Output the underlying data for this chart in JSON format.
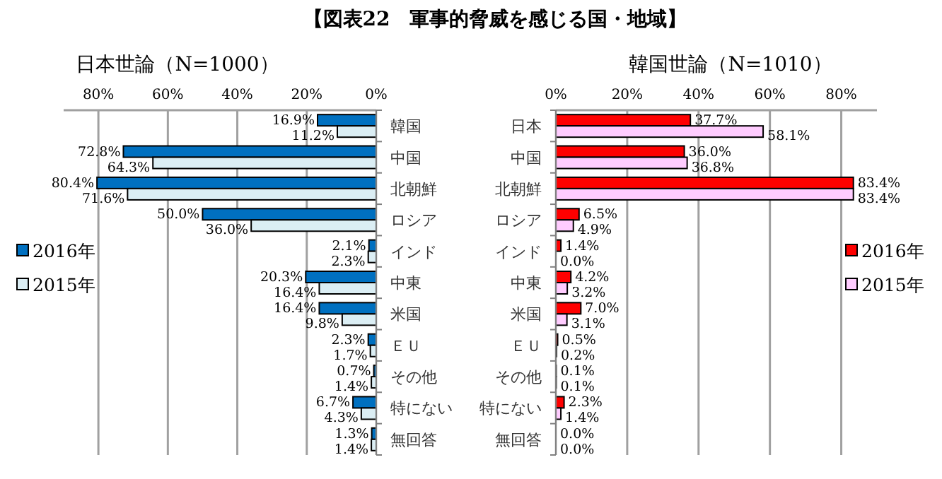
{
  "chart_data": [
    {
      "type": "bar",
      "orientation": "horizontal",
      "title": "【図表22　軍事的脅威を感じる国・地域】",
      "subtitle": "日本世論（N=1000）",
      "categories": [
        "韓国",
        "中国",
        "北朝鮮",
        "ロシア",
        "インド",
        "中東",
        "米国",
        "ＥＵ",
        "その他",
        "特にない",
        "無回答"
      ],
      "series": [
        {
          "name": "2016年",
          "color": "#0070c0",
          "values": [
            16.9,
            72.8,
            80.4,
            50.0,
            2.1,
            20.3,
            16.4,
            2.3,
            0.7,
            6.7,
            1.3
          ],
          "value_labels": [
            "16.9%",
            "72.8%",
            "80.4%",
            "50.0%",
            "2.1%",
            "20.3%",
            "16.4%",
            "2.3%",
            "0.7%",
            "6.7%",
            "1.3%"
          ]
        },
        {
          "name": "2015年",
          "color": "#dbeef4",
          "values": [
            11.2,
            64.3,
            71.6,
            36.0,
            2.3,
            16.4,
            9.8,
            1.7,
            1.4,
            4.3,
            1.4
          ],
          "value_labels": [
            "11.2%",
            "64.3%",
            "71.6%",
            "36.0%",
            "2.3%",
            "16.4%",
            "9.8%",
            "1.7%",
            "1.4%",
            "4.3%",
            "1.4%"
          ]
        }
      ],
      "xlim": [
        90,
        0
      ],
      "xticks": [
        {
          "value": 80,
          "label": "80%"
        },
        {
          "value": 60,
          "label": "60%"
        },
        {
          "value": 40,
          "label": "40%"
        },
        {
          "value": 20,
          "label": "20%"
        },
        {
          "value": 0,
          "label": "0%"
        }
      ],
      "grid": "x",
      "legend": "left"
    },
    {
      "type": "bar",
      "orientation": "horizontal",
      "subtitle": "韓国世論（N=1010）",
      "categories": [
        "日本",
        "中国",
        "北朝鮮",
        "ロシア",
        "インド",
        "中東",
        "米国",
        "ＥＵ",
        "その他",
        "特にない",
        "無回答"
      ],
      "series": [
        {
          "name": "2016年",
          "color": "#ff0000",
          "values": [
            37.7,
            36.0,
            83.4,
            6.5,
            1.4,
            4.2,
            7.0,
            0.5,
            0.1,
            2.3,
            0.0
          ],
          "value_labels": [
            "37.7%",
            "36.0%",
            "83.4%",
            "6.5%",
            "1.4%",
            "4.2%",
            "7.0%",
            "0.5%",
            "0.1%",
            "2.3%",
            "0.0%"
          ]
        },
        {
          "name": "2015年",
          "color": "#ffccff",
          "values": [
            58.1,
            36.8,
            83.4,
            4.9,
            0.0,
            3.2,
            3.1,
            0.2,
            0.1,
            1.4,
            0.0
          ],
          "value_labels": [
            "58.1%",
            "36.8%",
            "83.4%",
            "4.9%",
            "0.0%",
            "3.2%",
            "3.1%",
            "0.2%",
            "0.1%",
            "1.4%",
            "0.0%"
          ]
        }
      ],
      "xlim": [
        0,
        90
      ],
      "xticks": [
        {
          "value": 0,
          "label": "0%"
        },
        {
          "value": 20,
          "label": "20%"
        },
        {
          "value": 40,
          "label": "40%"
        },
        {
          "value": 60,
          "label": "60%"
        },
        {
          "value": 80,
          "label": "80%"
        }
      ],
      "grid": "x",
      "legend": "right"
    }
  ]
}
